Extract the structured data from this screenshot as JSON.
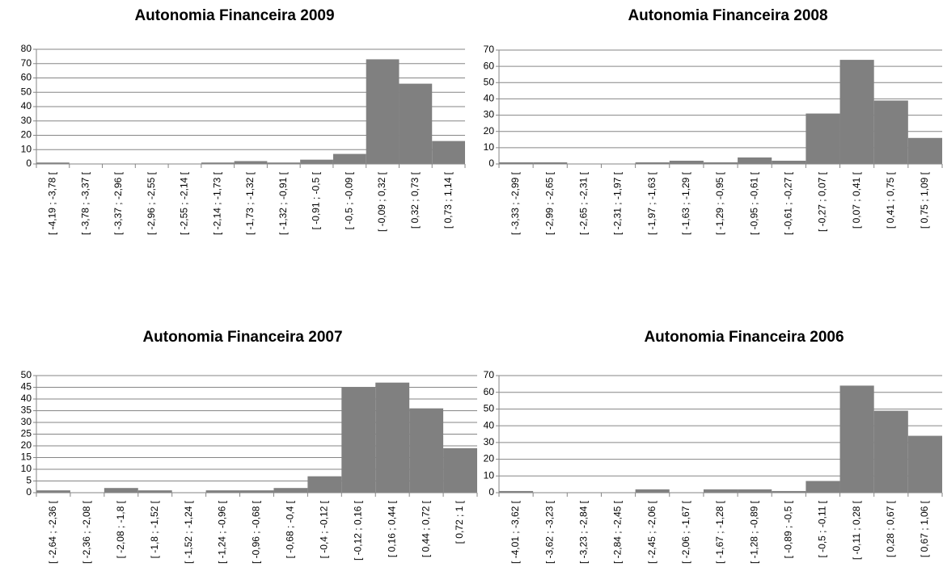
{
  "chart_data": [
    {
      "type": "bar",
      "title": "Autonomia Financeira 2009",
      "color": "#808080",
      "grid": true,
      "categories": [
        "[ -4,19 ; -3,78 [",
        "[ -3,78 ; -3,37 [",
        "[ -3,37 ; -2,96 [",
        "[ -2,96 ; -2,55 [",
        "[ -2,55 ; -2,14 [",
        "[ -2,14 ; -1,73 [",
        "[ -1,73 ; -1,32 [",
        "[ -1,32 ; -0,91 [",
        "[ -0,91 ; -0,5 [",
        "[ -0,5 ; -0,09 [",
        "[ -0,09 ; 0,32 [",
        "[ 0,32 ; 0,73 [",
        "[ 0,73 ; 1,14 ["
      ],
      "values": [
        1,
        0,
        0,
        0,
        0,
        1,
        2,
        1,
        3,
        7,
        73,
        56,
        16
      ],
      "ylim": [
        0,
        80
      ],
      "yticks": [
        0,
        10,
        20,
        30,
        40,
        50,
        60,
        70,
        80
      ]
    },
    {
      "type": "bar",
      "title": "Autonomia Financeira 2008",
      "color": "#808080",
      "grid": true,
      "categories": [
        "[ -3,33 ; -2,99 [",
        "[ -2,99 ; -2,65 [",
        "[ -2,65 ; -2,31 [",
        "[ -2,31 ; -1,97 [",
        "[ -1,97 ; -1,63 [",
        "[ -1,63 ; -1,29 [",
        "[ -1,29 ; -0,95 [",
        "[ -0,95 ; -0,61 [",
        "[ -0,61 ; -0,27 [",
        "[ -0,27 ; 0,07 [",
        "[ 0,07 ; 0,41 [",
        "[ 0,41 ; 0,75 [",
        "[ 0,75 ; 1,09 ["
      ],
      "values": [
        1,
        1,
        0,
        0,
        1,
        2,
        1,
        4,
        2,
        31,
        64,
        39,
        16
      ],
      "ylim": [
        0,
        70
      ],
      "yticks": [
        0,
        10,
        20,
        30,
        40,
        50,
        60,
        70
      ]
    },
    {
      "type": "bar",
      "title": "Autonomia Financeira 2007",
      "color": "#808080",
      "grid": true,
      "categories": [
        "[ -2,64 ; -2,36 [",
        "[ -2,36 ; -2,08 [",
        "[ -2,08 ; -1,8 [",
        "[ -1,8 ; -1,52 [",
        "[ -1,52 ; -1,24 [",
        "[ -1,24 ; -0,96 [",
        "[ -0,96 ; -0,68 [",
        "[ -0,68 ; -0,4 [",
        "[ -0,4 ; -0,12 [",
        "[ -0,12 ; 0,16 [",
        "[ 0,16 ; 0,44 [",
        "[ 0,44 ; 0,72 [",
        "[ 0,72 ; 1 ["
      ],
      "values": [
        1,
        0,
        2,
        1,
        0,
        1,
        1,
        2,
        7,
        45,
        47,
        36,
        19
      ],
      "ylim": [
        0,
        50
      ],
      "yticks": [
        0,
        5,
        10,
        15,
        20,
        25,
        30,
        35,
        40,
        45,
        50
      ]
    },
    {
      "type": "bar",
      "title": "Autonomia Financeira 2006",
      "color": "#808080",
      "grid": true,
      "categories": [
        "[ -4,01 ; -3,62 [",
        "[ -3,62 ; -3,23 [",
        "[ -3,23 ; -2,84 [",
        "[ -2,84 ; -2,45 [",
        "[ -2,45 ; -2,06 [",
        "[ -2,06 ; -1,67 [",
        "[ -1,67 ; -1,28 [",
        "[ -1,28 ; -0,89 [",
        "[ -0,89 ; -0,5 [",
        "[ -0,5 ; -0,11 [",
        "[ -0,11 ; 0,28 [",
        "[ 0,28 ; 0,67 [",
        "[ 0,67 ; 1,06 ["
      ],
      "values": [
        1,
        0,
        0,
        0,
        2,
        0,
        2,
        2,
        1,
        7,
        64,
        49,
        34
      ],
      "ylim": [
        0,
        70
      ],
      "yticks": [
        0,
        10,
        20,
        30,
        40,
        50,
        60,
        70
      ]
    }
  ]
}
